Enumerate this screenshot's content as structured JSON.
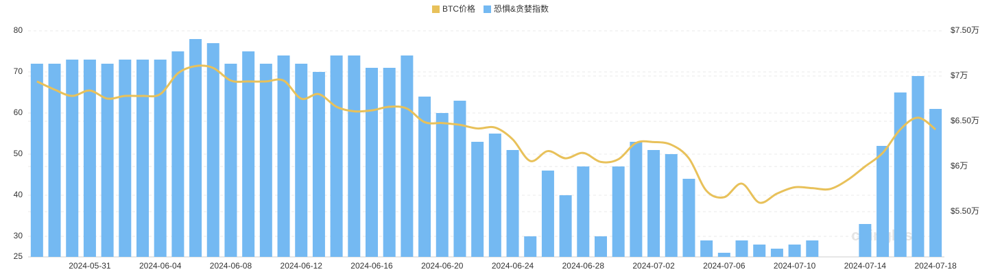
{
  "chart_data": {
    "type": "bar-line",
    "categories": [
      null,
      null,
      null,
      "2024-05-31",
      null,
      null,
      null,
      "2024-06-04",
      null,
      null,
      null,
      "2024-06-08",
      null,
      null,
      null,
      "2024-06-12",
      null,
      null,
      null,
      "2024-06-16",
      null,
      null,
      null,
      "2024-06-20",
      null,
      null,
      null,
      "2024-06-24",
      null,
      null,
      null,
      "2024-06-28",
      null,
      null,
      null,
      "2024-07-02",
      null,
      null,
      null,
      "2024-07-06",
      null,
      null,
      null,
      "2024-07-10",
      null,
      null,
      null,
      "2024-07-14",
      null,
      null,
      null,
      "2024-07-18"
    ],
    "series": [
      {
        "name": "BTC价格",
        "color": "#e8c15a",
        "type": "line",
        "axis": "y2",
        "values": [
          69400,
          68500,
          67800,
          68400,
          67500,
          67800,
          67800,
          68000,
          70300,
          71100,
          70900,
          69500,
          69400,
          69400,
          69500,
          67500,
          68000,
          66600,
          66100,
          66200,
          66600,
          66400,
          64900,
          64800,
          64600,
          64200,
          64300,
          63000,
          60600,
          61700,
          60900,
          61500,
          60500,
          60800,
          62600,
          62700,
          62400,
          60900,
          57300,
          56600,
          58100,
          56000,
          57000,
          57700,
          57600,
          57500,
          58500,
          60000,
          61500,
          64100,
          65400,
          64100
        ]
      },
      {
        "name": "恐惧&贪婪指数",
        "color": "#74b9f2",
        "type": "bar",
        "values": [
          72,
          72,
          73,
          73,
          72,
          73,
          73,
          73,
          75,
          78,
          77,
          72,
          75,
          72,
          74,
          72,
          70,
          74,
          74,
          71,
          71,
          74,
          64,
          60,
          63,
          53,
          55,
          51,
          30,
          46,
          40,
          47,
          30,
          47,
          53,
          51,
          50,
          44,
          29,
          26,
          29,
          28,
          27,
          28,
          29,
          null,
          null,
          33,
          52,
          65,
          69,
          61
        ]
      }
    ],
    "ylim": [
      25,
      80
    ],
    "yticks": [
      25,
      30,
      40,
      50,
      60,
      70,
      80
    ],
    "y2lim": [
      50000,
      75000
    ],
    "y2ticks": [
      {
        "value": 55000,
        "label": "$5.50万"
      },
      {
        "value": 60000,
        "label": "$6万"
      },
      {
        "value": 65000,
        "label": "$6.50万"
      },
      {
        "value": 70000,
        "label": "$7万"
      },
      {
        "value": 75000,
        "label": "$7.50万"
      }
    ],
    "grid": true,
    "legend": "top",
    "watermark": "coinglass"
  }
}
